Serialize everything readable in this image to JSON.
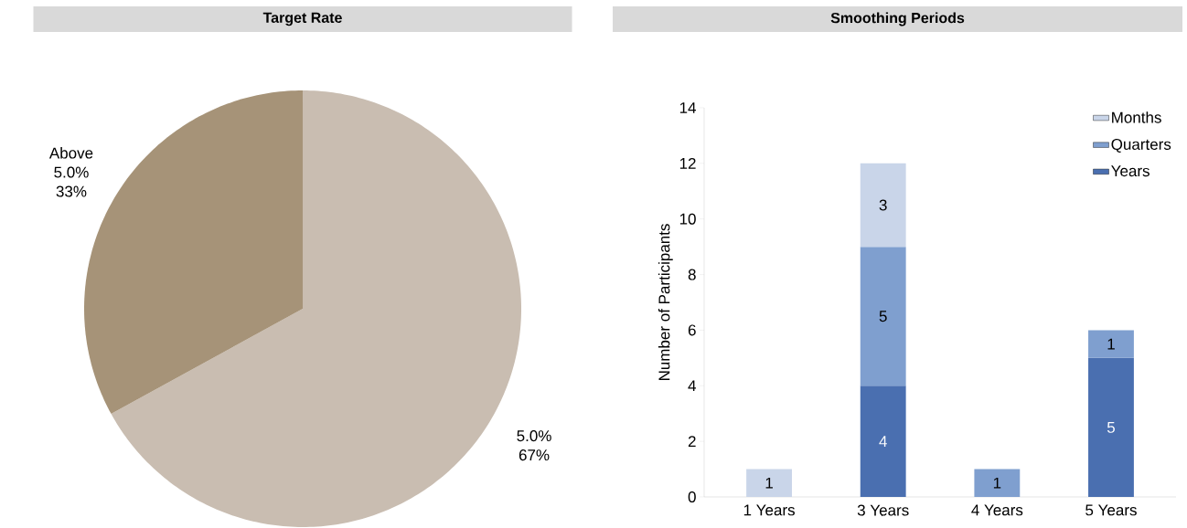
{
  "chart_data": [
    {
      "type": "pie",
      "title": "Target Rate",
      "categories": [
        "5.0%",
        "Above 5.0%"
      ],
      "values": [
        67,
        33
      ],
      "colors": [
        "#c9bdb1",
        "#a69378"
      ],
      "value_labels": [
        "67%",
        "33%"
      ]
    },
    {
      "type": "bar",
      "title": "Smoothing Periods",
      "ylabel": "Number of Participants",
      "categories": [
        "1 Years",
        "3 Years",
        "4 Years",
        "5 Years"
      ],
      "stacked": true,
      "series": [
        {
          "name": "Years",
          "color": "#4a6fb0",
          "values": [
            null,
            4,
            null,
            5
          ]
        },
        {
          "name": "Quarters",
          "color": "#7f9fcf",
          "values": [
            null,
            5,
            1,
            1
          ]
        },
        {
          "name": "Months",
          "color": "#c9d5e9",
          "values": [
            1,
            3,
            null,
            null
          ]
        }
      ],
      "ylim": [
        0,
        14
      ],
      "yticks": [
        0,
        2,
        4,
        6,
        8,
        10,
        12,
        14
      ],
      "legend": "top right",
      "data_labels": true
    }
  ]
}
